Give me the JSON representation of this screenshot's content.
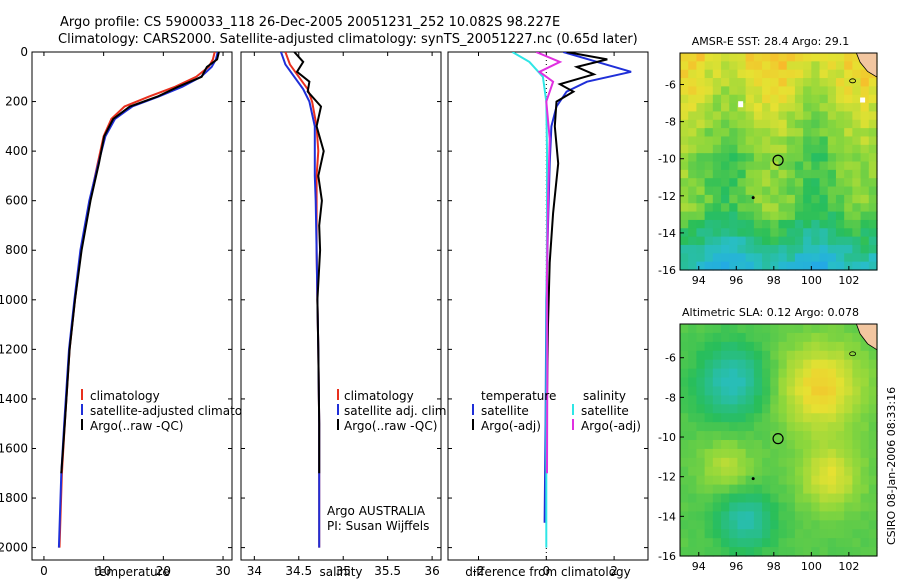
{
  "title_line1": "Argo profile: CS 5900033_118 26-Dec-2005 20051231_252 10.082S 98.227E",
  "title_line2": "Climatology: CARS2000. Satellite-adjusted climatology: synTS_20051227.nc (0.65d later)",
  "credit": "CSIRO 08-Jan-2006 08:33:16",
  "chart_data": [
    {
      "type": "line",
      "id": "temperature",
      "xlabel": "temperature",
      "xlim": [
        -2,
        31.5
      ],
      "ylim": [
        2050,
        0
      ],
      "xticks": [
        0,
        10,
        20,
        30
      ],
      "yticks": [
        0,
        200,
        400,
        600,
        800,
        1000,
        1200,
        1400,
        1600,
        1800,
        2000
      ],
      "colors": {
        "climatology": "#e8301e",
        "satellite": "#1f2fd8",
        "argo": "#000000"
      },
      "legend": [
        "climatology",
        "satellite-adjusted climatology",
        "Argo(..raw -QC)"
      ],
      "series": [
        {
          "name": "climatology",
          "x": [
            28.6,
            28.3,
            27.6,
            25.5,
            22.0,
            17.6,
            13.5,
            11.3,
            10.0,
            9.0,
            7.7,
            6.2,
            5.2,
            4.3,
            3.5,
            3.0,
            2.6
          ],
          "depth": [
            0,
            30,
            60,
            100,
            140,
            180,
            220,
            270,
            340,
            450,
            600,
            800,
            1000,
            1200,
            1500,
            1700,
            2000
          ]
        },
        {
          "name": "satellite-adjusted climatology",
          "x": [
            29.1,
            28.8,
            28.1,
            26.3,
            23.2,
            19.2,
            14.8,
            11.9,
            10.3,
            9.1,
            7.6,
            6.1,
            5.1,
            4.2,
            3.4,
            2.9,
            2.5
          ],
          "depth": [
            0,
            30,
            60,
            100,
            140,
            180,
            220,
            270,
            340,
            450,
            600,
            800,
            1000,
            1200,
            1500,
            1700,
            2000
          ]
        },
        {
          "name": "Argo(..raw -QC)",
          "x": [
            29.3,
            29.0,
            27.3,
            26.4,
            22.5,
            19.0,
            14.4,
            11.6,
            10.1,
            9.2,
            7.8,
            6.3,
            5.2,
            4.3,
            3.5,
            2.9
          ],
          "depth": [
            0,
            30,
            60,
            100,
            140,
            180,
            220,
            270,
            340,
            450,
            600,
            800,
            1000,
            1200,
            1500,
            1700
          ]
        }
      ]
    },
    {
      "type": "line",
      "id": "salinity",
      "xlabel": "salinity",
      "xlim": [
        33.85,
        36.1
      ],
      "ylim": [
        2050,
        0
      ],
      "xticks": [
        34,
        34.5,
        35,
        35.5,
        36
      ],
      "colors": {
        "climatology": "#e8301e",
        "satellite": "#1f2fd8",
        "argo": "#000000"
      },
      "legend": [
        "climatology",
        "satellite adj. clim.",
        "Argo(..raw -QC)"
      ],
      "annotation": [
        "Argo AUSTRALIA",
        "PI: Susan Wijffels"
      ],
      "series": [
        {
          "name": "climatology",
          "x": [
            34.35,
            34.4,
            34.5,
            34.6,
            34.65,
            34.7,
            34.72,
            34.7,
            34.7,
            34.7,
            34.71,
            34.72,
            34.73,
            34.73,
            34.73
          ],
          "depth": [
            0,
            50,
            100,
            150,
            200,
            300,
            400,
            500,
            600,
            800,
            1000,
            1200,
            1500,
            1700,
            2000
          ]
        },
        {
          "name": "satellite adj. clim.",
          "x": [
            34.3,
            34.35,
            34.45,
            34.55,
            34.62,
            34.68,
            34.68,
            34.68,
            34.69,
            34.7,
            34.71,
            34.72,
            34.73,
            34.73,
            34.73
          ],
          "depth": [
            0,
            50,
            100,
            150,
            200,
            300,
            400,
            500,
            600,
            800,
            1000,
            1200,
            1500,
            1700,
            2000
          ]
        },
        {
          "name": "Argo(..raw -QC)",
          "x": [
            34.45,
            34.55,
            34.48,
            34.62,
            34.6,
            34.75,
            34.7,
            34.78,
            34.72,
            34.76,
            34.73,
            34.74,
            34.71,
            34.72,
            34.73,
            34.73
          ],
          "depth": [
            0,
            40,
            80,
            120,
            160,
            220,
            300,
            400,
            500,
            600,
            700,
            800,
            1000,
            1200,
            1500,
            1700
          ]
        }
      ]
    },
    {
      "type": "line",
      "id": "difference",
      "xlabel": "difference from climatology",
      "xlim": [
        -2.9,
        3.0
      ],
      "ylim": [
        2050,
        0
      ],
      "xticks": [
        -2,
        0,
        2
      ],
      "colors": {
        "t_sat": "#1f2fd8",
        "t_argo": "#000000",
        "s_sat": "#2ee6e6",
        "s_argo": "#e030e0"
      },
      "legend_temperature": [
        "temperature",
        "satellite",
        "Argo(-adj)"
      ],
      "legend_salinity": [
        "salinity",
        "satellite",
        "Argo(-adj)"
      ],
      "series": [
        {
          "name": "temperature satellite",
          "x": [
            0.5,
            1.5,
            2.5,
            1.2,
            0.6,
            0.3,
            0.15,
            0.1,
            0.05,
            0.0,
            -0.02,
            -0.05
          ],
          "depth": [
            0,
            40,
            80,
            120,
            160,
            220,
            300,
            450,
            700,
            1000,
            1500,
            1900
          ]
        },
        {
          "name": "temperature Argo(-adj)",
          "x": [
            0.6,
            1.8,
            0.9,
            1.4,
            0.4,
            0.8,
            0.3,
            0.25,
            0.35,
            0.2,
            0.1,
            0.05,
            0.02,
            0.0
          ],
          "depth": [
            0,
            30,
            60,
            90,
            130,
            160,
            200,
            300,
            450,
            650,
            850,
            1100,
            1400,
            1700
          ]
        },
        {
          "name": "salinity satellite",
          "x": [
            -1.0,
            -0.5,
            -0.1,
            0.0,
            0.02,
            0.02,
            0.01,
            0.0,
            0.0
          ],
          "depth": [
            0,
            40,
            100,
            200,
            400,
            700,
            1000,
            1500,
            2000
          ]
        },
        {
          "name": "salinity Argo(-adj)",
          "x": [
            -0.3,
            0.4,
            -0.2,
            0.2,
            0.0,
            0.1,
            0.05,
            0.02,
            0.03,
            0.02
          ],
          "depth": [
            0,
            40,
            80,
            120,
            200,
            350,
            600,
            900,
            1300,
            1700
          ]
        }
      ]
    },
    {
      "type": "heatmap",
      "id": "sst_map",
      "title": "AMSR-E SST: 28.4 Argo: 29.1",
      "xlim": [
        93,
        103.5
      ],
      "ylim": [
        -16,
        -4.3
      ],
      "xticks": [
        94,
        96,
        98,
        100,
        102
      ],
      "yticks": [
        -6,
        -8,
        -10,
        -12,
        -14,
        -16
      ],
      "float_position": {
        "lon": 98.227,
        "lat": -10.082
      }
    },
    {
      "type": "heatmap",
      "id": "sla_map",
      "title": "Altimetric SLA: 0.12 Argo: 0.078",
      "xlim": [
        93,
        103.5
      ],
      "ylim": [
        -16,
        -4.3
      ],
      "xticks": [
        94,
        96,
        98,
        100,
        102
      ],
      "yticks": [
        -6,
        -8,
        -10,
        -12,
        -14,
        -16
      ],
      "float_position": {
        "lon": 98.227,
        "lat": -10.082
      }
    }
  ]
}
